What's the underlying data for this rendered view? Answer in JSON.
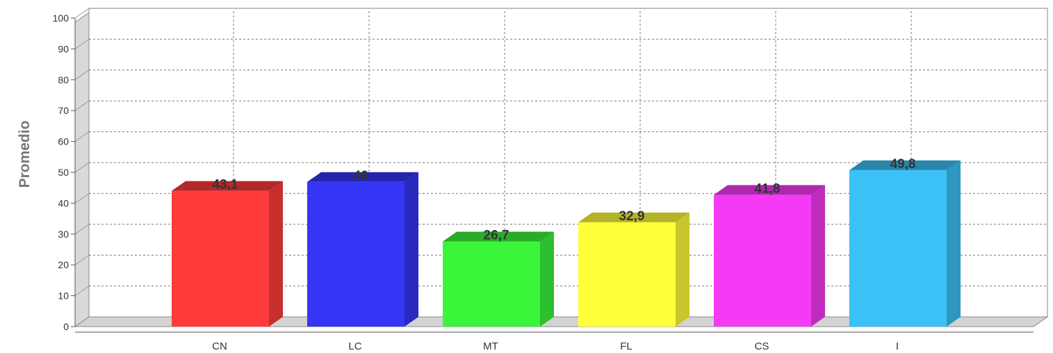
{
  "chart_data": {
    "type": "bar",
    "ylabel": "Promedio",
    "ylim": [
      0,
      100
    ],
    "yticks": [
      0,
      10,
      20,
      30,
      40,
      50,
      60,
      70,
      80,
      90,
      100
    ],
    "grid": true,
    "categories": [
      "CN",
      "LC",
      "MT",
      "FL",
      "CS",
      "I"
    ],
    "values": [
      43.1,
      46,
      26.7,
      32.9,
      41.8,
      49.8
    ],
    "data_labels": [
      "43,1",
      "46",
      "26,7",
      "32,9",
      "41,8",
      "49,8"
    ],
    "colors": [
      "#ff3b3b",
      "#3535f5",
      "#3af53a",
      "#ffff3a",
      "#f53af5",
      "#3ac1f5"
    ]
  }
}
